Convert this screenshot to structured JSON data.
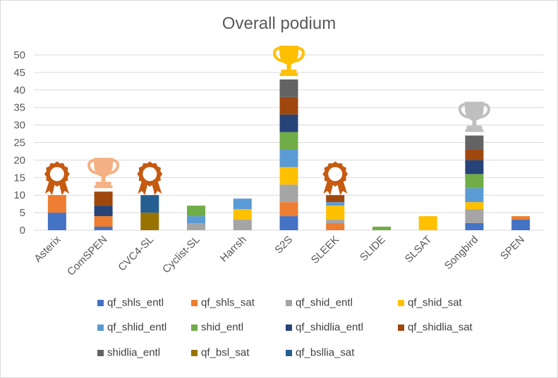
{
  "chart_data": {
    "type": "bar",
    "stacked": true,
    "title": "Overall podium",
    "xlabel": "",
    "ylabel": "",
    "ylim": [
      0,
      50
    ],
    "yticks": [
      0,
      5,
      10,
      15,
      20,
      25,
      30,
      35,
      40,
      45,
      50
    ],
    "grid": true,
    "legend_position": "bottom",
    "categories": [
      "Asterix",
      "ComSPEN",
      "CVC4-SL",
      "Cyclist-SL",
      "Harrsh",
      "S2S",
      "SLEEK",
      "SLIDE",
      "SLSAT",
      "Songbird",
      "SPEN"
    ],
    "series": [
      {
        "name": "qf_shls_entl",
        "color": "#4472C4",
        "values": [
          5,
          1,
          0,
          0,
          0,
          4,
          0,
          0,
          0,
          2,
          3
        ]
      },
      {
        "name": "qf_shls_sat",
        "color": "#ED7D31",
        "values": [
          5,
          3,
          0,
          0,
          0,
          4,
          2,
          0,
          0,
          0,
          1
        ]
      },
      {
        "name": "qf_shid_entl",
        "color": "#A5A5A5",
        "values": [
          0,
          0,
          0,
          2,
          3,
          5,
          1,
          0,
          0,
          4,
          0
        ]
      },
      {
        "name": "qf_shid_sat",
        "color": "#FFC000",
        "values": [
          0,
          0,
          0,
          0,
          3,
          5,
          4,
          0,
          4,
          2,
          0
        ]
      },
      {
        "name": "qf_shlid_entl",
        "color": "#5B9BD5",
        "values": [
          0,
          0,
          0,
          2,
          3,
          5,
          1,
          0,
          0,
          4,
          0
        ]
      },
      {
        "name": "shid_entl",
        "color": "#70AD47",
        "values": [
          0,
          0,
          0,
          3,
          0,
          5,
          0,
          1,
          0,
          4,
          0
        ]
      },
      {
        "name": "qf_shidlia_entl",
        "color": "#264478",
        "values": [
          0,
          3,
          0,
          0,
          0,
          5,
          0,
          0,
          0,
          4,
          0
        ]
      },
      {
        "name": "qf_shidlia_sat",
        "color": "#9E480E",
        "values": [
          0,
          4,
          0,
          0,
          0,
          5,
          2,
          0,
          0,
          3,
          0
        ]
      },
      {
        "name": "shidlia_entl",
        "color": "#636363",
        "values": [
          0,
          0,
          0,
          0,
          0,
          5,
          0,
          0,
          0,
          4,
          0
        ]
      },
      {
        "name": "qf_bsl_sat",
        "color": "#997300",
        "values": [
          0,
          0,
          5,
          0,
          0,
          0,
          0,
          0,
          0,
          0,
          0
        ]
      },
      {
        "name": "qf_bsllia_sat",
        "color": "#255E91",
        "values": [
          0,
          0,
          5,
          0,
          0,
          0,
          0,
          0,
          0,
          0,
          0
        ]
      }
    ],
    "awards": [
      {
        "category": "Asterix",
        "icon": "medal-icon",
        "color": "#C55A11"
      },
      {
        "category": "ComSPEN",
        "icon": "trophy-icon",
        "color": "#F4B183"
      },
      {
        "category": "CVC4-SL",
        "icon": "medal-icon",
        "color": "#C55A11"
      },
      {
        "category": "S2S",
        "icon": "trophy-icon",
        "color": "#FFC000"
      },
      {
        "category": "SLEEK",
        "icon": "medal-icon",
        "color": "#C55A11"
      },
      {
        "category": "Songbird",
        "icon": "trophy-icon",
        "color": "#BFBFBF"
      }
    ]
  }
}
